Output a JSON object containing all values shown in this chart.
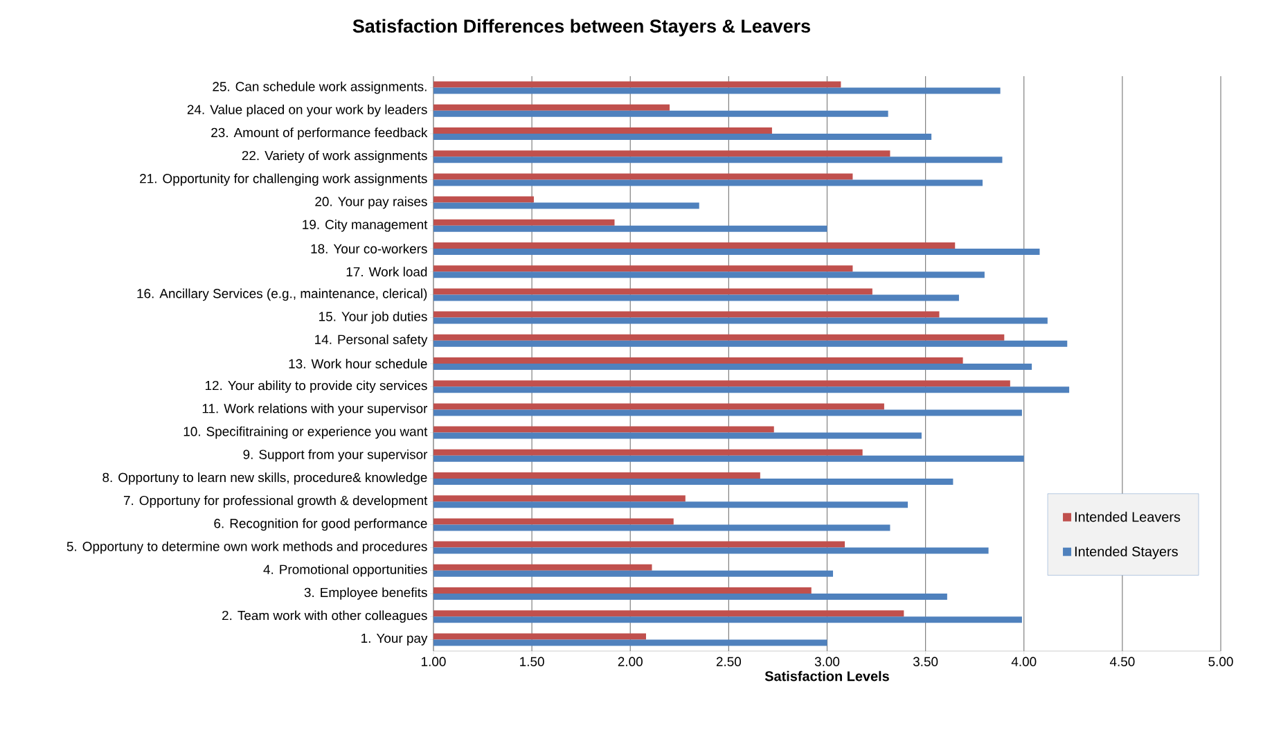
{
  "chart_data": {
    "type": "bar",
    "orientation": "horizontal",
    "title": "Satisfaction Differences between Stayers & Leavers",
    "xlabel": "Satisfaction Levels",
    "categories": [
      "25. Can schedule work assignments.",
      "24. Value placed on your work by leaders",
      "23. Amount of performance feedback",
      "22. Variety of work assignments",
      "21. Opportunity for challenging work assignments",
      "20. Your pay raises",
      "19. City management",
      "18. Your co-workers",
      "17. Work load",
      "16. Ancillary Services (e.g., maintenance, clerical)",
      "15. Your job duties",
      "14. Personal safety",
      "13. Work hour schedule",
      "12. Your ability to provide city services",
      "11. Work relations with your supervisor",
      "10. Specifitraining or experience you want",
      "9. Support from your supervisor",
      "8. Opportuny to learn new skills, procedure& knowledge",
      "7. Opportuny for professional growth & development",
      "6. Recognition for good performance",
      "5. Opportuny to determine own work methods and procedures",
      "4. Promotional opportunities",
      "3. Employee benefits",
      "2. Team work with other colleagues",
      "1. Your pay"
    ],
    "series": [
      {
        "name": "Intended Leavers",
        "color": "#c0504d",
        "values": [
          3.07,
          2.2,
          2.72,
          3.32,
          3.13,
          1.51,
          1.92,
          3.65,
          3.13,
          3.23,
          3.57,
          3.9,
          3.69,
          3.93,
          3.29,
          2.73,
          3.18,
          2.66,
          2.28,
          2.22,
          3.09,
          2.11,
          2.92,
          3.39,
          2.08
        ]
      },
      {
        "name": "Intended Stayers",
        "color": "#4f81bd",
        "values": [
          3.88,
          3.31,
          3.53,
          3.89,
          3.79,
          2.35,
          3.0,
          4.08,
          3.8,
          3.67,
          4.12,
          4.22,
          4.04,
          4.23,
          3.99,
          3.48,
          4.0,
          3.64,
          3.41,
          3.32,
          3.82,
          3.03,
          3.61,
          3.99,
          3.0
        ]
      }
    ],
    "xlim": [
      1,
      5
    ],
    "xticks": [
      {
        "value": 1,
        "label": "1.00"
      },
      {
        "value": 1.5,
        "label": "1.50"
      },
      {
        "value": 2,
        "label": "2.00"
      },
      {
        "value": 2.5,
        "label": "2.50"
      },
      {
        "value": 3,
        "label": "3.00"
      },
      {
        "value": 3.5,
        "label": "3.50"
      },
      {
        "value": 4,
        "label": "4.00"
      },
      {
        "value": 4.5,
        "label": "4.50"
      },
      {
        "value": 5,
        "label": "5.00"
      }
    ],
    "grid": "x",
    "legend": "bottom right"
  }
}
